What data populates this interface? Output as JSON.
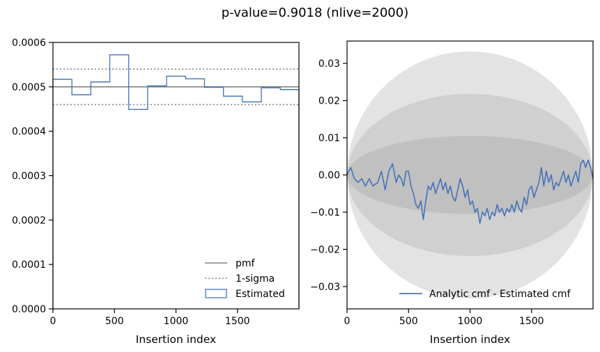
{
  "suptitle": "p-value=0.9018 (nlive=2000)",
  "colors": {
    "estimated": "#4472b8",
    "reference": "#808080",
    "band_outer": "#e3e3e3",
    "band_mid": "#d0d0d0",
    "band_inner": "#c0c0c0"
  },
  "chart_data": [
    {
      "type": "histogram",
      "xlabel": "Insertion index",
      "ylabel": "",
      "xlim": [
        0,
        2000
      ],
      "ylim": [
        0,
        0.0006
      ],
      "xticks": [
        0,
        500,
        1000,
        1500
      ],
      "xtick_labels": [
        "0",
        "500",
        "1000",
        "1500"
      ],
      "yticks": [
        0,
        0.0001,
        0.0002,
        0.0003,
        0.0004,
        0.0005,
        0.0006
      ],
      "ytick_labels": [
        "0.0000",
        "0.0001",
        "0.0002",
        "0.0003",
        "0.0004",
        "0.0005",
        "0.0006"
      ],
      "pmf": 0.0005,
      "sigma_upper": 0.00054,
      "sigma_lower": 0.00046,
      "bin_edges": [
        0,
        154,
        308,
        462,
        616,
        770,
        924,
        1078,
        1232,
        1386,
        1540,
        1694,
        1848,
        2000
      ],
      "values": [
        0.000517,
        0.000482,
        0.000511,
        0.000572,
        0.000449,
        0.000502,
        0.000524,
        0.000518,
        0.000499,
        0.000479,
        0.000466,
        0.000498,
        0.000494
      ],
      "legend": {
        "position": "lower right",
        "entries": [
          "pmf",
          "1-sigma",
          "Estimated"
        ]
      }
    },
    {
      "type": "line",
      "xlabel": "Insertion index",
      "ylabel": "",
      "xlim": [
        0,
        2000
      ],
      "ylim": [
        -0.036,
        0.036
      ],
      "xticks": [
        0,
        500,
        1000,
        1500
      ],
      "xtick_labels": [
        "0",
        "500",
        "1000",
        "1500"
      ],
      "yticks": [
        -0.03,
        -0.02,
        -0.01,
        0.0,
        0.01,
        0.02,
        0.03
      ],
      "ytick_labels": [
        "−0.03",
        "−0.02",
        "−0.01",
        "0.00",
        "0.01",
        "0.02",
        "0.03"
      ],
      "band_peak_halfwidths": [
        0.0105,
        0.0218,
        0.0332
      ],
      "series": [
        {
          "name": "Analytic cmf - Estimated cmf",
          "x": [
            0,
            30,
            60,
            90,
            120,
            150,
            180,
            210,
            250,
            280,
            310,
            340,
            370,
            400,
            420,
            440,
            460,
            480,
            500,
            520,
            540,
            560,
            580,
            600,
            620,
            640,
            660,
            680,
            700,
            720,
            740,
            760,
            780,
            800,
            820,
            840,
            860,
            880,
            900,
            920,
            940,
            960,
            980,
            1000,
            1020,
            1040,
            1060,
            1080,
            1100,
            1120,
            1140,
            1160,
            1180,
            1200,
            1220,
            1240,
            1260,
            1280,
            1300,
            1320,
            1340,
            1360,
            1380,
            1400,
            1420,
            1440,
            1460,
            1480,
            1500,
            1520,
            1540,
            1560,
            1580,
            1600,
            1620,
            1640,
            1660,
            1680,
            1700,
            1720,
            1740,
            1760,
            1780,
            1800,
            1820,
            1840,
            1860,
            1880,
            1900,
            1920,
            1940,
            1960,
            1980,
            2000
          ],
          "y": [
            0.0,
            0.002,
            -0.001,
            -0.002,
            -0.001,
            -0.003,
            -0.001,
            -0.003,
            -0.002,
            0.001,
            -0.004,
            0.001,
            0.003,
            -0.002,
            0.0,
            -0.001,
            -0.003,
            0.001,
            0.001,
            -0.003,
            -0.005,
            -0.008,
            -0.009,
            -0.007,
            -0.012,
            -0.007,
            -0.003,
            -0.004,
            -0.002,
            -0.005,
            -0.003,
            -0.001,
            -0.004,
            -0.002,
            -0.005,
            -0.003,
            -0.006,
            -0.007,
            -0.004,
            -0.001,
            -0.003,
            -0.006,
            -0.004,
            -0.008,
            -0.007,
            -0.01,
            -0.009,
            -0.013,
            -0.01,
            -0.011,
            -0.009,
            -0.012,
            -0.01,
            -0.011,
            -0.008,
            -0.01,
            -0.009,
            -0.011,
            -0.009,
            -0.01,
            -0.008,
            -0.01,
            -0.007,
            -0.009,
            -0.01,
            -0.006,
            -0.008,
            -0.004,
            -0.003,
            -0.006,
            -0.004,
            -0.002,
            0.002,
            -0.003,
            0.001,
            -0.002,
            0.0,
            -0.004,
            -0.002,
            -0.003,
            -0.001,
            0.001,
            -0.002,
            0.0,
            -0.003,
            -0.001,
            0.001,
            -0.002,
            0.003,
            0.004,
            0.002,
            0.004,
            0.002,
            -0.001
          ]
        }
      ],
      "legend": {
        "position": "lower right",
        "entries": [
          "Analytic cmf - Estimated cmf"
        ]
      }
    }
  ]
}
